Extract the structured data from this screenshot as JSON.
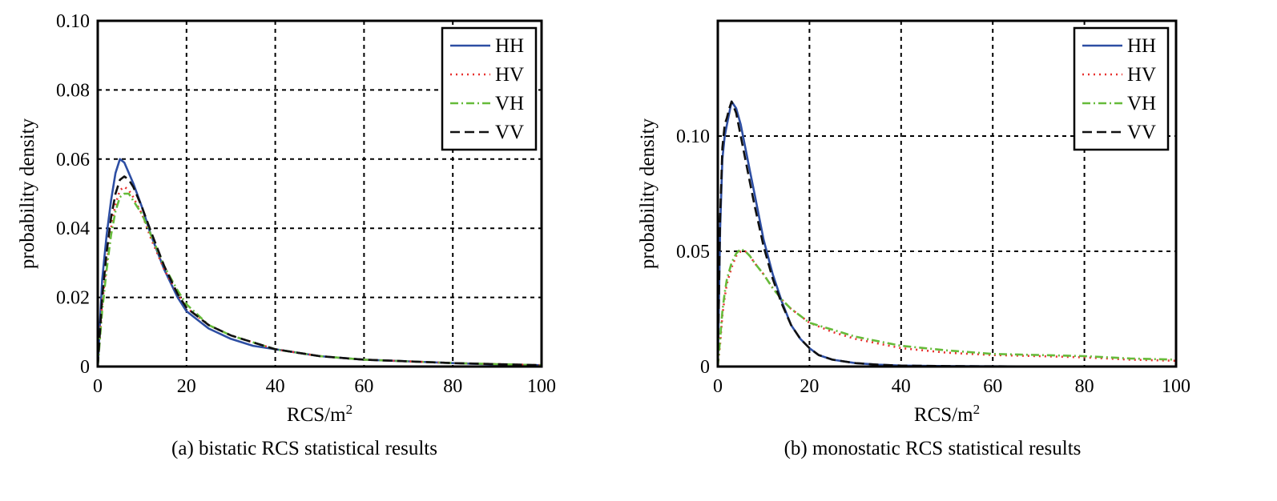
{
  "colors": {
    "HH": "#2d4ea3",
    "HV": "#e8312f",
    "VH": "#66bb3a",
    "VV": "#111111"
  },
  "chart_data": [
    {
      "type": "line",
      "caption": "(a) bistatic RCS statistical results",
      "xlabel": "RCS/m",
      "xlabel_sup": "2",
      "ylabel": "probability density",
      "xlim": [
        0,
        100
      ],
      "ylim": [
        0,
        0.1
      ],
      "xticks": [
        0,
        20,
        40,
        60,
        80,
        100
      ],
      "xtick_labels": [
        "0",
        "20",
        "40",
        "60",
        "80",
        "100"
      ],
      "yticks": [
        0,
        0.02,
        0.04,
        0.06,
        0.08,
        0.1
      ],
      "ytick_labels": [
        "0",
        "0.02",
        "0.04",
        "0.06",
        "0.08",
        "0.10"
      ],
      "grid": true,
      "legend_position": "top-right",
      "series": [
        {
          "name": "HH",
          "style": "solid",
          "x": [
            0,
            1,
            2,
            3,
            4,
            5,
            6,
            7,
            8,
            10,
            12,
            15,
            18,
            20,
            25,
            30,
            35,
            40,
            50,
            60,
            70,
            80,
            90,
            100
          ],
          "y": [
            0,
            0.025,
            0.038,
            0.048,
            0.056,
            0.06,
            0.059,
            0.056,
            0.053,
            0.046,
            0.038,
            0.028,
            0.02,
            0.016,
            0.011,
            0.008,
            0.006,
            0.005,
            0.003,
            0.002,
            0.0015,
            0.001,
            0.0006,
            0.0004
          ]
        },
        {
          "name": "HV",
          "style": "dotted",
          "x": [
            0,
            1,
            2,
            3,
            4,
            5,
            6,
            7,
            8,
            10,
            12,
            15,
            18,
            20,
            25,
            30,
            35,
            40,
            50,
            60,
            70,
            80,
            90,
            100
          ],
          "y": [
            0,
            0.018,
            0.03,
            0.04,
            0.047,
            0.051,
            0.052,
            0.051,
            0.049,
            0.044,
            0.037,
            0.028,
            0.021,
            0.017,
            0.012,
            0.009,
            0.007,
            0.005,
            0.003,
            0.002,
            0.0015,
            0.001,
            0.0007,
            0.0004
          ]
        },
        {
          "name": "VH",
          "style": "dashdot",
          "x": [
            0,
            1,
            2,
            3,
            4,
            5,
            6,
            7,
            8,
            10,
            12,
            15,
            18,
            20,
            25,
            30,
            35,
            40,
            50,
            60,
            70,
            80,
            90,
            100
          ],
          "y": [
            0,
            0.016,
            0.028,
            0.038,
            0.045,
            0.049,
            0.05,
            0.05,
            0.048,
            0.044,
            0.038,
            0.029,
            0.022,
            0.018,
            0.012,
            0.009,
            0.007,
            0.005,
            0.003,
            0.002,
            0.0015,
            0.001,
            0.0007,
            0.0004
          ]
        },
        {
          "name": "VV",
          "style": "dashed",
          "x": [
            0,
            1,
            2,
            3,
            4,
            5,
            6,
            7,
            8,
            10,
            12,
            15,
            18,
            20,
            25,
            30,
            35,
            40,
            50,
            60,
            70,
            80,
            90,
            100
          ],
          "y": [
            0,
            0.02,
            0.033,
            0.043,
            0.05,
            0.054,
            0.055,
            0.054,
            0.052,
            0.046,
            0.039,
            0.029,
            0.021,
            0.017,
            0.012,
            0.009,
            0.007,
            0.005,
            0.003,
            0.002,
            0.0015,
            0.001,
            0.0007,
            0.0004
          ]
        }
      ]
    },
    {
      "type": "line",
      "caption": "(b) monostatic RCS statistical results",
      "xlabel": "RCS/m",
      "xlabel_sup": "2",
      "ylabel": "probability density",
      "xlim": [
        0,
        100
      ],
      "ylim": [
        0,
        0.15
      ],
      "xticks": [
        0,
        20,
        40,
        60,
        80,
        100
      ],
      "xtick_labels": [
        "0",
        "20",
        "40",
        "60",
        "80",
        "100"
      ],
      "yticks": [
        0,
        0.05,
        0.1
      ],
      "ytick_labels": [
        "0",
        "0.05",
        "0.10"
      ],
      "grid": true,
      "legend_position": "top-right",
      "series": [
        {
          "name": "HH",
          "style": "solid",
          "x": [
            0,
            0.5,
            1,
            1.5,
            2,
            2.5,
            3,
            4,
            5,
            6,
            7,
            8,
            10,
            12,
            14,
            16,
            18,
            20,
            22,
            25,
            30,
            35,
            40,
            50,
            60,
            80,
            100
          ],
          "y": [
            0,
            0.06,
            0.09,
            0.1,
            0.105,
            0.11,
            0.115,
            0.112,
            0.105,
            0.095,
            0.085,
            0.075,
            0.055,
            0.04,
            0.028,
            0.018,
            0.012,
            0.008,
            0.005,
            0.003,
            0.0015,
            0.0008,
            0.0004,
            0.0002,
            0.0001,
            0,
            0
          ]
        },
        {
          "name": "HV",
          "style": "dotted",
          "x": [
            0,
            0.5,
            1,
            1.5,
            2,
            3,
            4,
            5,
            6,
            7,
            8,
            10,
            12,
            14,
            16,
            18,
            20,
            25,
            30,
            40,
            50,
            60,
            70,
            80,
            90,
            100
          ],
          "y": [
            0,
            0.01,
            0.022,
            0.03,
            0.036,
            0.043,
            0.048,
            0.05,
            0.05,
            0.048,
            0.045,
            0.04,
            0.034,
            0.029,
            0.025,
            0.022,
            0.019,
            0.015,
            0.012,
            0.008,
            0.006,
            0.005,
            0.0045,
            0.004,
            0.003,
            0.0025
          ]
        },
        {
          "name": "VH",
          "style": "dashdot",
          "x": [
            0,
            0.5,
            1,
            1.5,
            2,
            3,
            4,
            5,
            6,
            7,
            8,
            10,
            12,
            14,
            16,
            18,
            20,
            25,
            30,
            40,
            50,
            60,
            70,
            80,
            90,
            100
          ],
          "y": [
            0,
            0.012,
            0.024,
            0.032,
            0.038,
            0.045,
            0.049,
            0.051,
            0.05,
            0.048,
            0.045,
            0.04,
            0.034,
            0.029,
            0.025,
            0.022,
            0.019,
            0.016,
            0.013,
            0.009,
            0.007,
            0.0055,
            0.005,
            0.0045,
            0.0035,
            0.003
          ]
        },
        {
          "name": "VV",
          "style": "dashed",
          "x": [
            0,
            0.5,
            1,
            1.5,
            2,
            2.5,
            3,
            4,
            5,
            6,
            7,
            8,
            10,
            12,
            14,
            16,
            18,
            20,
            22,
            25,
            30,
            35,
            40,
            50,
            60,
            80,
            100
          ],
          "y": [
            0,
            0.065,
            0.095,
            0.105,
            0.108,
            0.112,
            0.115,
            0.11,
            0.1,
            0.09,
            0.08,
            0.07,
            0.052,
            0.038,
            0.027,
            0.018,
            0.012,
            0.008,
            0.005,
            0.003,
            0.0015,
            0.0008,
            0.0004,
            0.0002,
            0.0001,
            0,
            0
          ]
        }
      ]
    }
  ]
}
